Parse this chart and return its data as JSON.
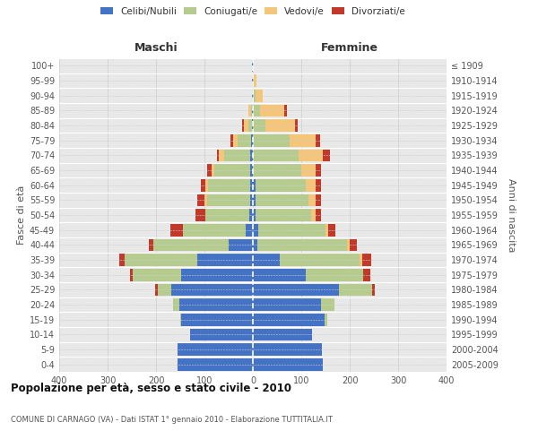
{
  "age_groups": [
    "0-4",
    "5-9",
    "10-14",
    "15-19",
    "20-24",
    "25-29",
    "30-34",
    "35-39",
    "40-44",
    "45-49",
    "50-54",
    "55-59",
    "60-64",
    "65-69",
    "70-74",
    "75-79",
    "80-84",
    "85-89",
    "90-94",
    "95-99",
    "100+"
  ],
  "birth_years": [
    "2005-2009",
    "2000-2004",
    "1995-1999",
    "1990-1994",
    "1985-1989",
    "1980-1984",
    "1975-1979",
    "1970-1974",
    "1965-1969",
    "1960-1964",
    "1955-1959",
    "1950-1954",
    "1945-1949",
    "1940-1944",
    "1935-1939",
    "1930-1934",
    "1925-1929",
    "1920-1924",
    "1915-1919",
    "1910-1914",
    "≤ 1909"
  ],
  "colors": {
    "celibi": "#4472C4",
    "coniugati": "#B5CC8E",
    "vedovi": "#F5C57A",
    "divorziati": "#C0392B"
  },
  "maschi": {
    "celibi": [
      155,
      155,
      130,
      148,
      152,
      168,
      148,
      115,
      50,
      15,
      8,
      5,
      5,
      5,
      5,
      3,
      1,
      1,
      1,
      1,
      2
    ],
    "coniugati": [
      0,
      0,
      0,
      2,
      12,
      28,
      100,
      150,
      155,
      130,
      90,
      90,
      88,
      75,
      55,
      28,
      8,
      3,
      1,
      0,
      0
    ],
    "vedovi": [
      0,
      0,
      0,
      0,
      0,
      0,
      0,
      0,
      0,
      0,
      0,
      5,
      5,
      5,
      10,
      10,
      10,
      5,
      0,
      0,
      0
    ],
    "divorziati": [
      0,
      0,
      0,
      0,
      0,
      5,
      5,
      10,
      10,
      25,
      20,
      15,
      10,
      10,
      5,
      5,
      3,
      0,
      0,
      0,
      0
    ]
  },
  "femmine": {
    "celibi": [
      145,
      143,
      122,
      148,
      140,
      178,
      110,
      55,
      10,
      12,
      5,
      5,
      5,
      0,
      0,
      0,
      0,
      0,
      0,
      0,
      0
    ],
    "coniugati": [
      0,
      0,
      0,
      5,
      28,
      68,
      118,
      165,
      185,
      138,
      115,
      110,
      105,
      100,
      95,
      75,
      25,
      15,
      5,
      2,
      0
    ],
    "vedovi": [
      0,
      0,
      0,
      0,
      0,
      0,
      0,
      5,
      5,
      5,
      10,
      15,
      20,
      30,
      50,
      55,
      62,
      50,
      15,
      5,
      0
    ],
    "divorziati": [
      0,
      0,
      0,
      0,
      0,
      5,
      15,
      20,
      15,
      15,
      10,
      10,
      10,
      10,
      15,
      8,
      5,
      5,
      0,
      0,
      0
    ]
  },
  "xlim": 400,
  "title": "Popolazione per età, sesso e stato civile - 2010",
  "subtitle": "COMUNE DI CARNAGO (VA) - Dati ISTAT 1° gennaio 2010 - Elaborazione TUTTITALIA.IT",
  "ylabel_left": "Fasce di età",
  "ylabel_right": "Anni di nascita",
  "xlabel_left": "Maschi",
  "xlabel_right": "Femmine",
  "bg_color": "#e8e8e8"
}
